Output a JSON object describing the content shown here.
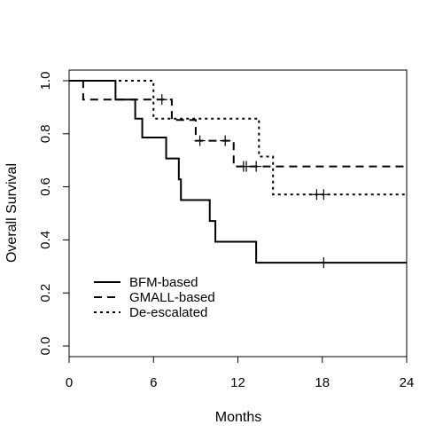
{
  "chart_data": {
    "type": "line",
    "subtype": "kaplan-meier step",
    "xlabel": "Months",
    "ylabel": "Overall Survival",
    "xlim": [
      0,
      24
    ],
    "ylim": [
      0,
      1
    ],
    "x_ticks": [
      0,
      6,
      12,
      18,
      24
    ],
    "y_ticks": [
      0.0,
      0.2,
      0.4,
      0.6,
      0.8,
      1.0
    ],
    "x_tick_labels": [
      "0",
      "6",
      "12",
      "18",
      "24"
    ],
    "y_tick_labels": [
      "0.0",
      "0.2",
      "0.4",
      "0.6",
      "0.8",
      "1.0"
    ],
    "grid": false,
    "legend_position": "bottom-left",
    "series": [
      {
        "name": "BFM-based",
        "line_style": "solid",
        "steps": [
          [
            0,
            1.0
          ],
          [
            3.3,
            0.929
          ],
          [
            4.7,
            0.857
          ],
          [
            5.2,
            0.786
          ],
          [
            6.9,
            0.707
          ],
          [
            7.8,
            0.628
          ],
          [
            7.95,
            0.55
          ],
          [
            10.0,
            0.471
          ],
          [
            10.4,
            0.393
          ],
          [
            13.3,
            0.314
          ],
          [
            24,
            0.314
          ]
        ],
        "censored": [
          18.1
        ]
      },
      {
        "name": "GMALL-based",
        "line_style": "dashed",
        "steps": [
          [
            0,
            1.0
          ],
          [
            1.0,
            0.929
          ],
          [
            7.3,
            0.852
          ],
          [
            9.0,
            0.774
          ],
          [
            11.7,
            0.677
          ],
          [
            24,
            0.677
          ]
        ],
        "censored": [
          6.6,
          9.3,
          11.1,
          12.4,
          12.6,
          13.3
        ]
      },
      {
        "name": "De-escalated",
        "line_style": "dotted",
        "steps": [
          [
            0,
            1.0
          ],
          [
            6.0,
            0.857
          ],
          [
            13.5,
            0.714
          ],
          [
            14.5,
            0.571
          ],
          [
            24,
            0.571
          ]
        ],
        "censored": [
          17.6,
          18.1
        ]
      }
    ]
  }
}
